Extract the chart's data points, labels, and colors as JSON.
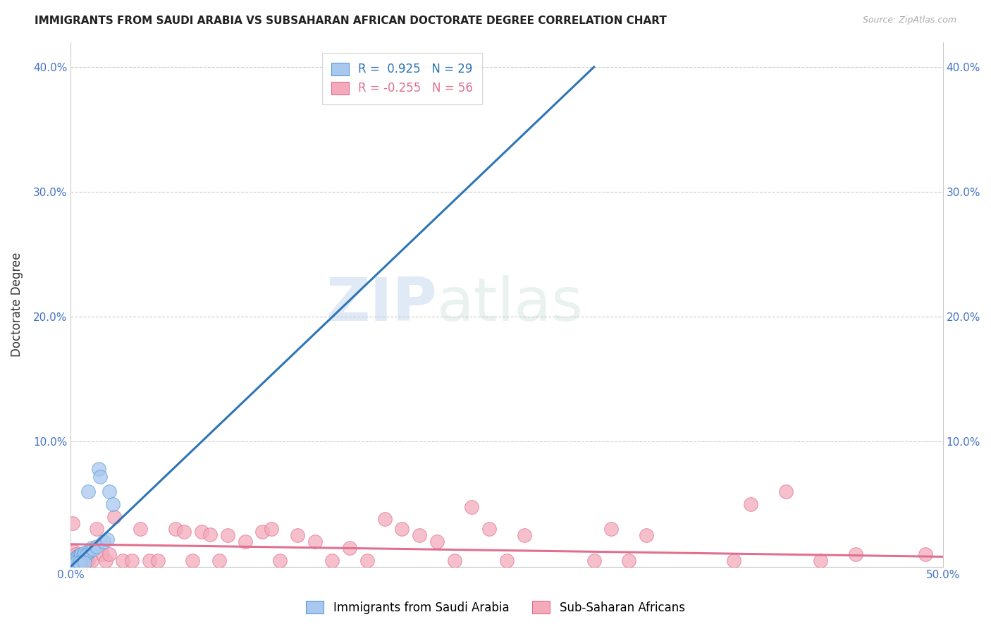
{
  "title": "IMMIGRANTS FROM SAUDI ARABIA VS SUBSAHARAN AFRICAN DOCTORATE DEGREE CORRELATION CHART",
  "source": "Source: ZipAtlas.com",
  "ylabel": "Doctorate Degree",
  "xlim": [
    0.0,
    0.5
  ],
  "ylim": [
    0.0,
    0.42
  ],
  "xticks": [
    0.0,
    0.1,
    0.2,
    0.3,
    0.4,
    0.5
  ],
  "xtick_labels": [
    "0.0%",
    "",
    "",
    "",
    "",
    "50.0%"
  ],
  "yticks": [
    0.0,
    0.1,
    0.2,
    0.3,
    0.4
  ],
  "ytick_labels": [
    "",
    "10.0%",
    "20.0%",
    "30.0%",
    "40.0%"
  ],
  "right_ytick_labels": [
    "",
    "10.0%",
    "20.0%",
    "30.0%",
    "40.0%"
  ],
  "blue_color": "#A8C8F0",
  "blue_edge_color": "#5B9BD5",
  "pink_color": "#F4AABB",
  "pink_edge_color": "#E07090",
  "blue_line_color": "#2E75B6",
  "pink_line_color": "#E07090",
  "blue_R": 0.925,
  "blue_N": 29,
  "pink_R": -0.255,
  "pink_N": 56,
  "legend_label_blue": "Immigrants from Saudi Arabia",
  "legend_label_pink": "Sub-Saharan Africans",
  "watermark_zip": "ZIP",
  "watermark_atlas": "atlas",
  "saudi_x": [
    0.001,
    0.001,
    0.002,
    0.002,
    0.003,
    0.003,
    0.004,
    0.004,
    0.005,
    0.005,
    0.006,
    0.006,
    0.007,
    0.008,
    0.009,
    0.01,
    0.011,
    0.012,
    0.013,
    0.015,
    0.016,
    0.017,
    0.019,
    0.021,
    0.022,
    0.024,
    0.003,
    0.005,
    0.008
  ],
  "saudi_y": [
    0.003,
    0.005,
    0.004,
    0.006,
    0.005,
    0.007,
    0.006,
    0.008,
    0.007,
    0.009,
    0.008,
    0.01,
    0.009,
    0.011,
    0.01,
    0.06,
    0.013,
    0.015,
    0.014,
    0.016,
    0.078,
    0.072,
    0.02,
    0.022,
    0.06,
    0.05,
    0.003,
    0.003,
    0.003
  ],
  "subsaharan_x": [
    0.001,
    0.002,
    0.003,
    0.004,
    0.005,
    0.006,
    0.007,
    0.008,
    0.009,
    0.01,
    0.012,
    0.015,
    0.018,
    0.02,
    0.022,
    0.025,
    0.03,
    0.035,
    0.04,
    0.045,
    0.05,
    0.06,
    0.065,
    0.07,
    0.075,
    0.08,
    0.085,
    0.09,
    0.1,
    0.11,
    0.115,
    0.12,
    0.13,
    0.14,
    0.15,
    0.16,
    0.17,
    0.18,
    0.19,
    0.2,
    0.21,
    0.22,
    0.23,
    0.24,
    0.25,
    0.26,
    0.3,
    0.31,
    0.32,
    0.33,
    0.38,
    0.39,
    0.41,
    0.43,
    0.45,
    0.49
  ],
  "subsaharan_y": [
    0.035,
    0.012,
    0.01,
    0.008,
    0.007,
    0.006,
    0.006,
    0.005,
    0.005,
    0.005,
    0.005,
    0.03,
    0.01,
    0.005,
    0.01,
    0.04,
    0.005,
    0.005,
    0.03,
    0.005,
    0.005,
    0.03,
    0.028,
    0.005,
    0.028,
    0.026,
    0.005,
    0.025,
    0.02,
    0.028,
    0.03,
    0.005,
    0.025,
    0.02,
    0.005,
    0.015,
    0.005,
    0.038,
    0.03,
    0.025,
    0.02,
    0.005,
    0.048,
    0.03,
    0.005,
    0.025,
    0.005,
    0.03,
    0.005,
    0.025,
    0.005,
    0.05,
    0.06,
    0.005,
    0.01,
    0.01
  ],
  "blue_trend_x": [
    0.0,
    0.3
  ],
  "blue_trend_y": [
    0.0,
    0.4
  ],
  "pink_trend_x": [
    0.0,
    0.5
  ],
  "pink_trend_y": [
    0.018,
    0.008
  ]
}
